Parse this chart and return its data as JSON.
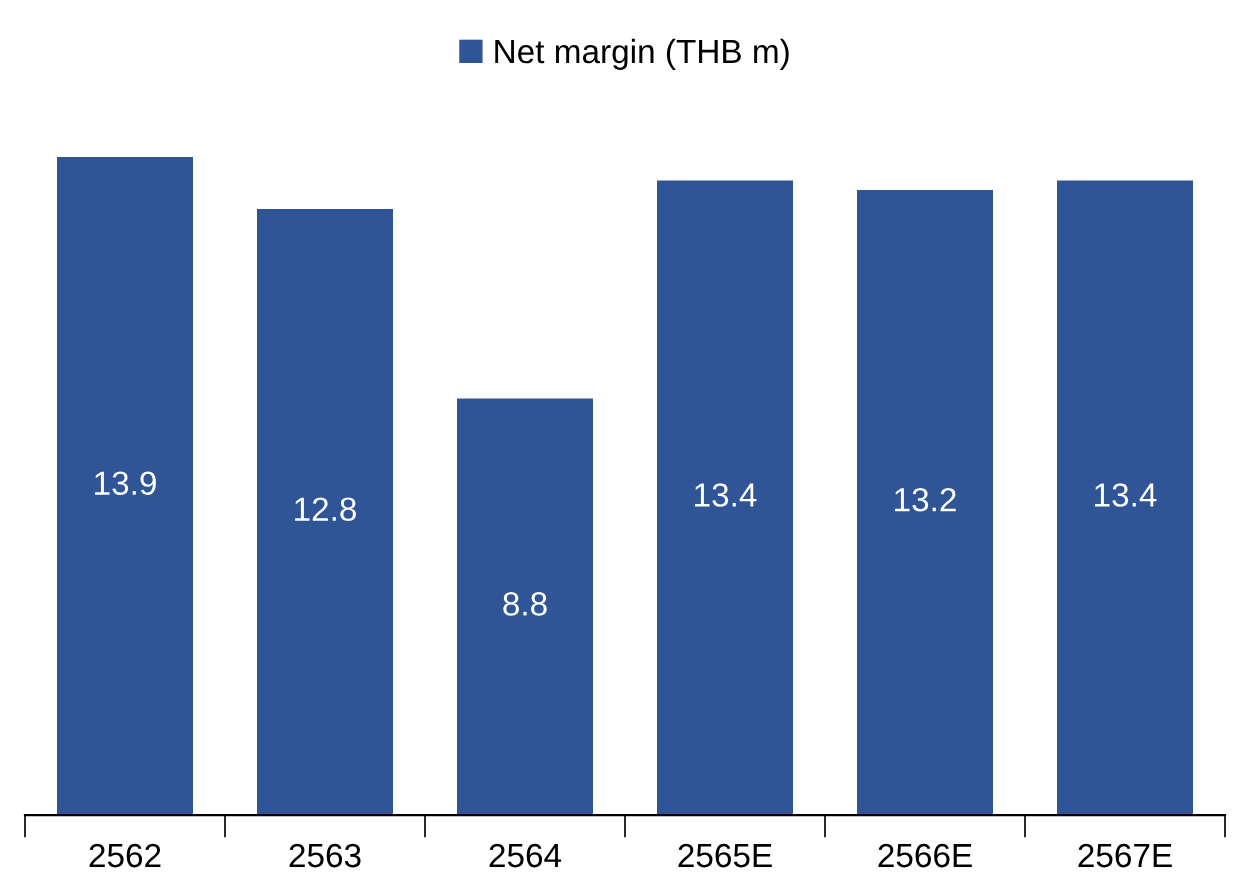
{
  "chart_data": {
    "type": "bar",
    "categories": [
      "2562",
      "2563",
      "2564",
      "2565E",
      "2566E",
      "2567E"
    ],
    "series": [
      {
        "name": "Net margin (THB m)",
        "color": "#2f5597",
        "values": [
          13.9,
          12.8,
          8.8,
          13.4,
          13.2,
          13.4
        ]
      }
    ],
    "tick_labels": "x",
    "data_labels": true,
    "legend": "top",
    "grid": false
  }
}
